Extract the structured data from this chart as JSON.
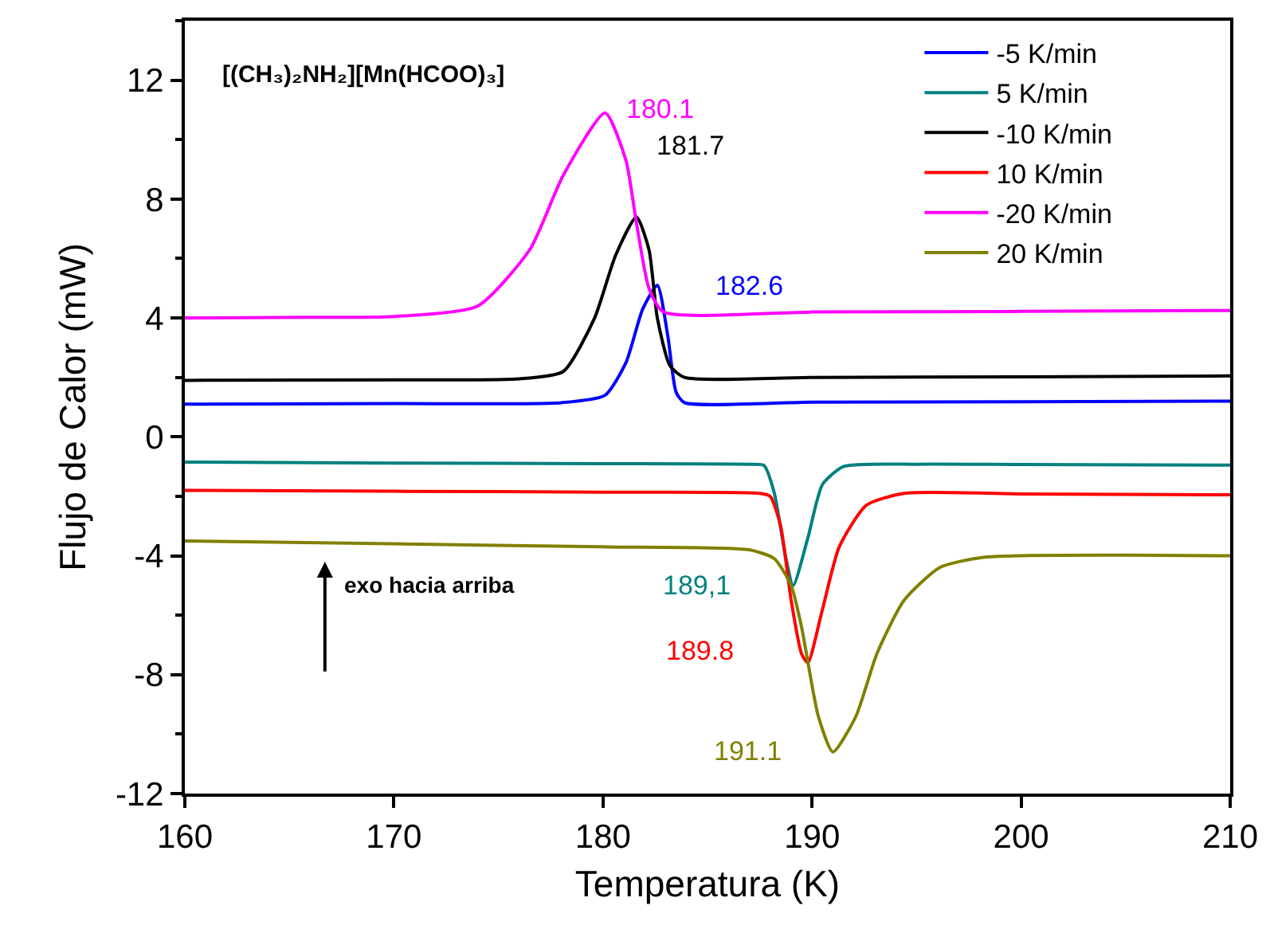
{
  "chart_data": {
    "type": "line",
    "title": "[(CH₃)₂NH₂][Mn(HCOO)₃]",
    "xlabel": "Temperatura (K)",
    "ylabel": "Flujo de Calor (mW)",
    "xlim": [
      160,
      210
    ],
    "xticks": [
      160,
      170,
      180,
      190,
      200,
      210
    ],
    "ylim": [
      -12,
      14
    ],
    "yticks": [
      -12,
      -8,
      -4,
      0,
      4,
      8,
      12
    ],
    "grid": false,
    "legend": "top right",
    "marker": "none",
    "line_style": "solid",
    "series": [
      {
        "name": "-5 K/min",
        "color": "#0000ff",
        "x": [
          160,
          170,
          178,
          180.1,
          181.1,
          181.9,
          182.6,
          183.1,
          183.5,
          183.9,
          190,
          200,
          210
        ],
        "values": [
          1.1,
          1.12,
          1.15,
          1.4,
          2.5,
          4.3,
          5.1,
          3.4,
          1.5,
          1.15,
          1.17,
          1.18,
          1.2
        ]
      },
      {
        "name": "5 K/min",
        "color": "#008080",
        "x": [
          160,
          170,
          180,
          187,
          187.7,
          188.2,
          188.7,
          189.1,
          189.8,
          190.5,
          191.5,
          195,
          200,
          210
        ],
        "values": [
          -0.85,
          -0.88,
          -0.9,
          -0.92,
          -0.96,
          -1.9,
          -3.9,
          -5.0,
          -3.4,
          -1.6,
          -1.0,
          -0.92,
          -0.93,
          -0.95
        ]
      },
      {
        "name": "-10 K/min",
        "color": "#000000",
        "x": [
          160,
          170,
          176,
          178.1,
          179.6,
          180.6,
          181.6,
          182.2,
          182.6,
          183.2,
          183.9,
          190,
          200,
          210
        ],
        "values": [
          1.9,
          1.92,
          1.95,
          2.2,
          4.0,
          6.1,
          7.4,
          6.3,
          4.0,
          2.4,
          2.0,
          2.0,
          2.02,
          2.05
        ]
      },
      {
        "name": "10 K/min",
        "color": "#ff0000",
        "x": [
          160,
          170,
          180,
          187.5,
          188.0,
          188.5,
          189.0,
          189.5,
          189.8,
          190.5,
          191.3,
          192.6,
          194.4,
          200,
          210
        ],
        "values": [
          -1.8,
          -1.83,
          -1.86,
          -1.9,
          -2.0,
          -3.0,
          -5.5,
          -7.3,
          -7.6,
          -5.8,
          -3.7,
          -2.3,
          -1.9,
          -1.92,
          -1.95
        ]
      },
      {
        "name": "-20 K/min",
        "color": "#ff00ff",
        "x": [
          160,
          166,
          170,
          174.0,
          176.5,
          178.1,
          180.1,
          181.1,
          181.6,
          182.2,
          182.9,
          190,
          200,
          210
        ],
        "values": [
          4.0,
          4.02,
          4.05,
          4.4,
          6.3,
          8.8,
          10.9,
          9.3,
          7.2,
          5.0,
          4.2,
          4.2,
          4.22,
          4.25
        ]
      },
      {
        "name": "20 K/min",
        "color": "#808000",
        "x": [
          160,
          170,
          180,
          187,
          188.2,
          189.0,
          189.5,
          190.3,
          191.0,
          192.1,
          193.1,
          194.4,
          196.1,
          198.2,
          205,
          210
        ],
        "values": [
          -3.5,
          -3.6,
          -3.7,
          -3.8,
          -4.1,
          -5.0,
          -6.4,
          -9.4,
          -10.6,
          -9.4,
          -7.3,
          -5.5,
          -4.4,
          -4.05,
          -3.98,
          -4.0
        ]
      }
    ],
    "annotations": [
      {
        "text": "182.6",
        "x": 182.6,
        "y": 5.1
      },
      {
        "text": "189,1",
        "x": 189.1,
        "y": -5.0
      },
      {
        "text": "181.7",
        "x": 181.7,
        "y": 7.4
      },
      {
        "text": "189.8",
        "x": 189.8,
        "y": -7.6
      },
      {
        "text": "180.1",
        "x": 180.1,
        "y": 10.9
      },
      {
        "text": "191.1",
        "x": 191.1,
        "y": -10.6
      },
      "exo hacia arriba"
    ]
  }
}
